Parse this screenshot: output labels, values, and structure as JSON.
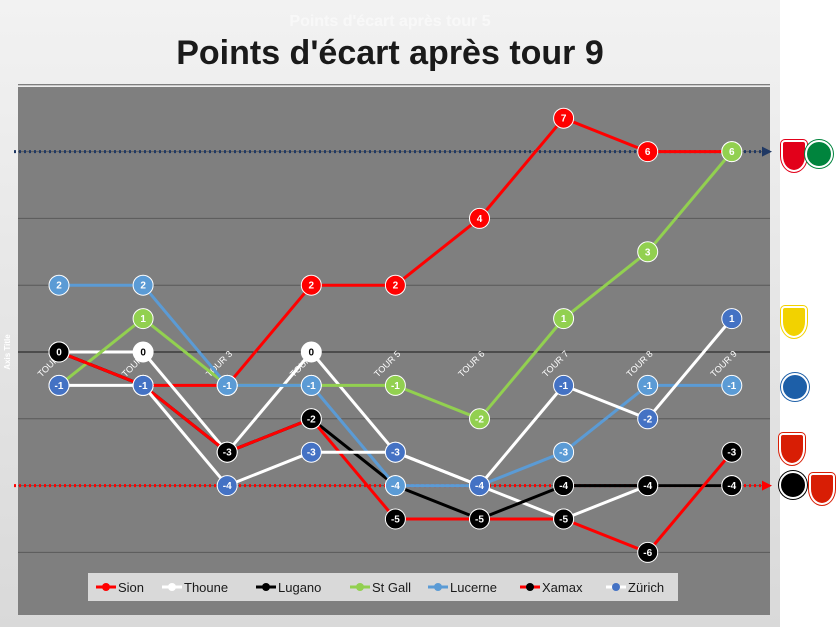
{
  "chart_data": {
    "type": "line",
    "title": "Points d'écart après tour 9",
    "ghost_title": "Points d'écart après tour 5",
    "ylabel": "Axis Title",
    "xlabel": "",
    "ylim": [
      -7,
      8
    ],
    "grid": true,
    "legend_position": "bottom",
    "categories": [
      "TOUR 1",
      "TOUR 2",
      "TOUR 3",
      "TOUR 4",
      "TOUR 5",
      "TOUR 6",
      "TOUR 7",
      "TOUR 8",
      "TOUR 9"
    ],
    "series": [
      {
        "name": "Sion",
        "color": "#ff0000",
        "marker": "#ff0000",
        "text": "#ffffff",
        "values": [
          0,
          -1,
          -1,
          2,
          2,
          4,
          7,
          6,
          6
        ]
      },
      {
        "name": "Thoune",
        "color": "#ffffff",
        "marker": "#ffffff",
        "text": "#000000",
        "values": [
          0,
          0,
          -3,
          0,
          -3,
          -4,
          -5,
          -4,
          -4
        ]
      },
      {
        "name": "Lugano",
        "color": "#000000",
        "marker": "#000000",
        "text": "#ffffff",
        "values": [
          0,
          -1,
          -3,
          -2,
          -4,
          -5,
          -4,
          -4,
          -4
        ]
      },
      {
        "name": "St Gall",
        "color": "#92d050",
        "marker": "#92d050",
        "text": "#ffffff",
        "values": [
          -1,
          1,
          -1,
          -1,
          -1,
          -2,
          1,
          3,
          6
        ]
      },
      {
        "name": "Lucerne",
        "color": "#5b9bd5",
        "marker": "#5b9bd5",
        "text": "#ffffff",
        "values": [
          2,
          2,
          -1,
          -1,
          -4,
          -4,
          -3,
          -1,
          -1
        ]
      },
      {
        "name": "Xamax",
        "color": "#ff0000",
        "marker": "#000000",
        "text": "#ffffff",
        "values": [
          0,
          -1,
          -3,
          -2,
          -5,
          -5,
          -5,
          -6,
          -3
        ]
      },
      {
        "name": "Zürich",
        "color": "#ffffff",
        "marker": "#4472c4",
        "text": "#ffffff",
        "values": [
          -1,
          -1,
          -4,
          -3,
          -3,
          -4,
          -1,
          -2,
          1
        ]
      }
    ],
    "reference_lines": [
      {
        "value": 6,
        "color": "#1f3864",
        "style": "dotted"
      },
      {
        "value": -4,
        "color": "#ff0000",
        "style": "dotted"
      }
    ]
  },
  "logos": [
    {
      "name": "sion-logo",
      "color": "#e2001a"
    },
    {
      "name": "st-gall-logo",
      "color": "#00843d"
    },
    {
      "name": "zurich-logo",
      "color": "#f2d200"
    },
    {
      "name": "lucerne-logo",
      "color": "#1d5fa8"
    },
    {
      "name": "xamax-logo",
      "color": "#d81e05"
    },
    {
      "name": "lugano-logo",
      "color": "#000000"
    },
    {
      "name": "thoune-logo",
      "color": "#d81e05"
    }
  ]
}
